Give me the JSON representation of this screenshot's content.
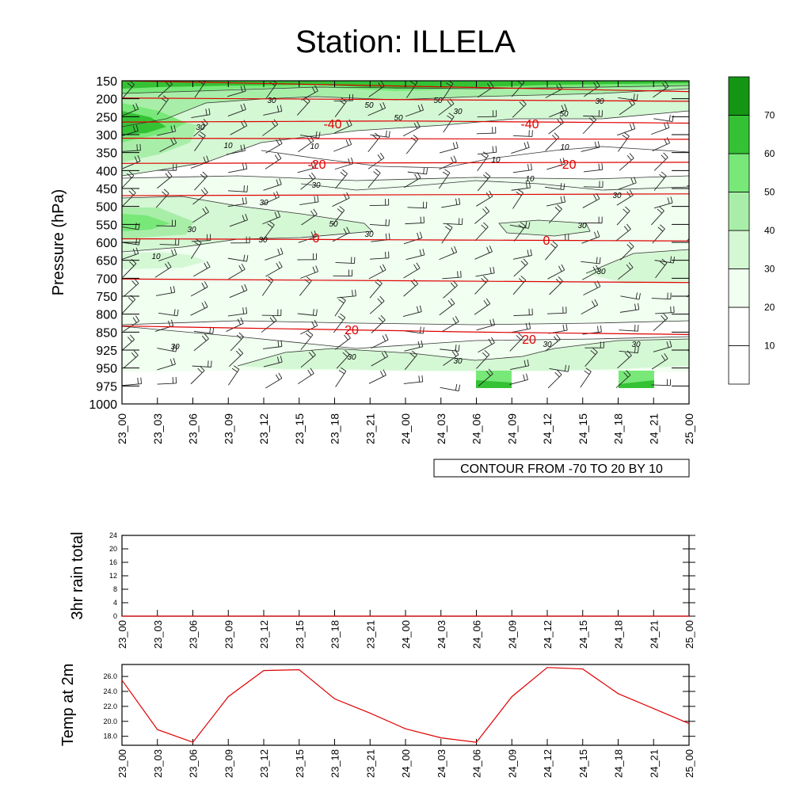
{
  "title": "Station: ILLELA",
  "time_labels": [
    "23_00",
    "23_03",
    "23_06",
    "23_09",
    "23_12",
    "23_15",
    "23_18",
    "23_21",
    "24_00",
    "24_03",
    "24_06",
    "24_09",
    "24_12",
    "24_15",
    "24_18",
    "24_21",
    "25_00"
  ],
  "chart_data": [
    {
      "type": "heatmap",
      "title": "Station: ILLELA",
      "ylabel": "Pressure (hPa)",
      "y_ticks": [
        "150",
        "200",
        "250",
        "300",
        "350",
        "400",
        "450",
        "500",
        "550",
        "600",
        "650",
        "700",
        "750",
        "800",
        "850",
        "925",
        "950",
        "975",
        "1000"
      ],
      "x_ticks": [
        "23_00",
        "23_03",
        "23_06",
        "23_09",
        "23_12",
        "23_15",
        "23_18",
        "23_21",
        "24_00",
        "24_03",
        "24_06",
        "24_09",
        "24_12",
        "24_15",
        "24_18",
        "24_21",
        "25_00"
      ],
      "info_label": "CONTOUR FROM -70 TO 20 BY 10",
      "colorbar": {
        "levels": [
          10,
          20,
          30,
          40,
          50,
          60,
          70
        ],
        "label_values": [
          "10",
          "20",
          "30",
          "40",
          "50",
          "60",
          "70"
        ],
        "colors": [
          "#ffffff",
          "#ffffff",
          "#f0fff0",
          "#d4f7d4",
          "#a8eea8",
          "#78e878",
          "#34c234",
          "#149614"
        ]
      },
      "temperature_contours": [
        {
          "label": "-40",
          "levels_hPa": [
            265,
            262,
            268
          ]
        },
        {
          "label": "-20",
          "levels_hPa": [
            380,
            377
          ]
        },
        {
          "label": "0",
          "levels_hPa": [
            590,
            596
          ]
        },
        {
          "label": "20",
          "levels_hPa": [
            833,
            860
          ]
        }
      ],
      "temperature_labels": [
        {
          "text": "-40",
          "time": "23_18"
        },
        {
          "text": "-40",
          "time": "24_12"
        },
        {
          "text": "-20",
          "time": "23_15"
        },
        {
          "text": "-20",
          "time": "24_15"
        },
        {
          "text": "0",
          "time": "23_15"
        },
        {
          "text": "0",
          "time": "24_12"
        },
        {
          "text": "20",
          "time": "23_21"
        },
        {
          "text": "20",
          "time": "24_12"
        }
      ],
      "speed_labels": [
        "30",
        "50",
        "50",
        "30",
        "30",
        "50",
        "50",
        "30",
        "10",
        "10",
        "10",
        "10",
        "10",
        "30",
        "30",
        "30",
        "50",
        "30",
        "30",
        "30",
        "30",
        "10",
        "30",
        "30",
        "30"
      ]
    },
    {
      "type": "line",
      "ylabel": "3hr rain total",
      "y_ticks": [
        "0",
        "4",
        "8",
        "12",
        "16",
        "20",
        "24"
      ],
      "ylim": [
        0,
        24
      ],
      "x": [
        "23_00",
        "23_03",
        "23_06",
        "23_09",
        "23_12",
        "23_15",
        "23_18",
        "23_21",
        "24_00",
        "24_03",
        "24_06",
        "24_09",
        "24_12",
        "24_15",
        "24_18",
        "24_21",
        "25_00"
      ],
      "values": [
        0,
        0,
        0,
        0,
        0,
        0,
        0,
        0,
        0,
        0,
        0,
        0,
        0,
        0,
        0,
        0,
        0
      ]
    },
    {
      "type": "line",
      "ylabel": "Temp at 2m",
      "y_ticks": [
        "18.0",
        "20.0",
        "22.0",
        "24.0",
        "26.0"
      ],
      "ylim": [
        16.8,
        27.6
      ],
      "x": [
        "23_00",
        "23_03",
        "23_06",
        "23_09",
        "23_12",
        "23_15",
        "23_18",
        "23_21",
        "24_00",
        "24_03",
        "24_06",
        "24_09",
        "24_12",
        "24_15",
        "24_18",
        "24_21",
        "25_00"
      ],
      "values": [
        25.5,
        18.9,
        17.2,
        23.3,
        26.8,
        26.9,
        23.0,
        21.1,
        19.0,
        17.8,
        17.2,
        23.3,
        27.2,
        27.0,
        23.7,
        21.7,
        19.7
      ],
      "color": "#e00000"
    }
  ]
}
